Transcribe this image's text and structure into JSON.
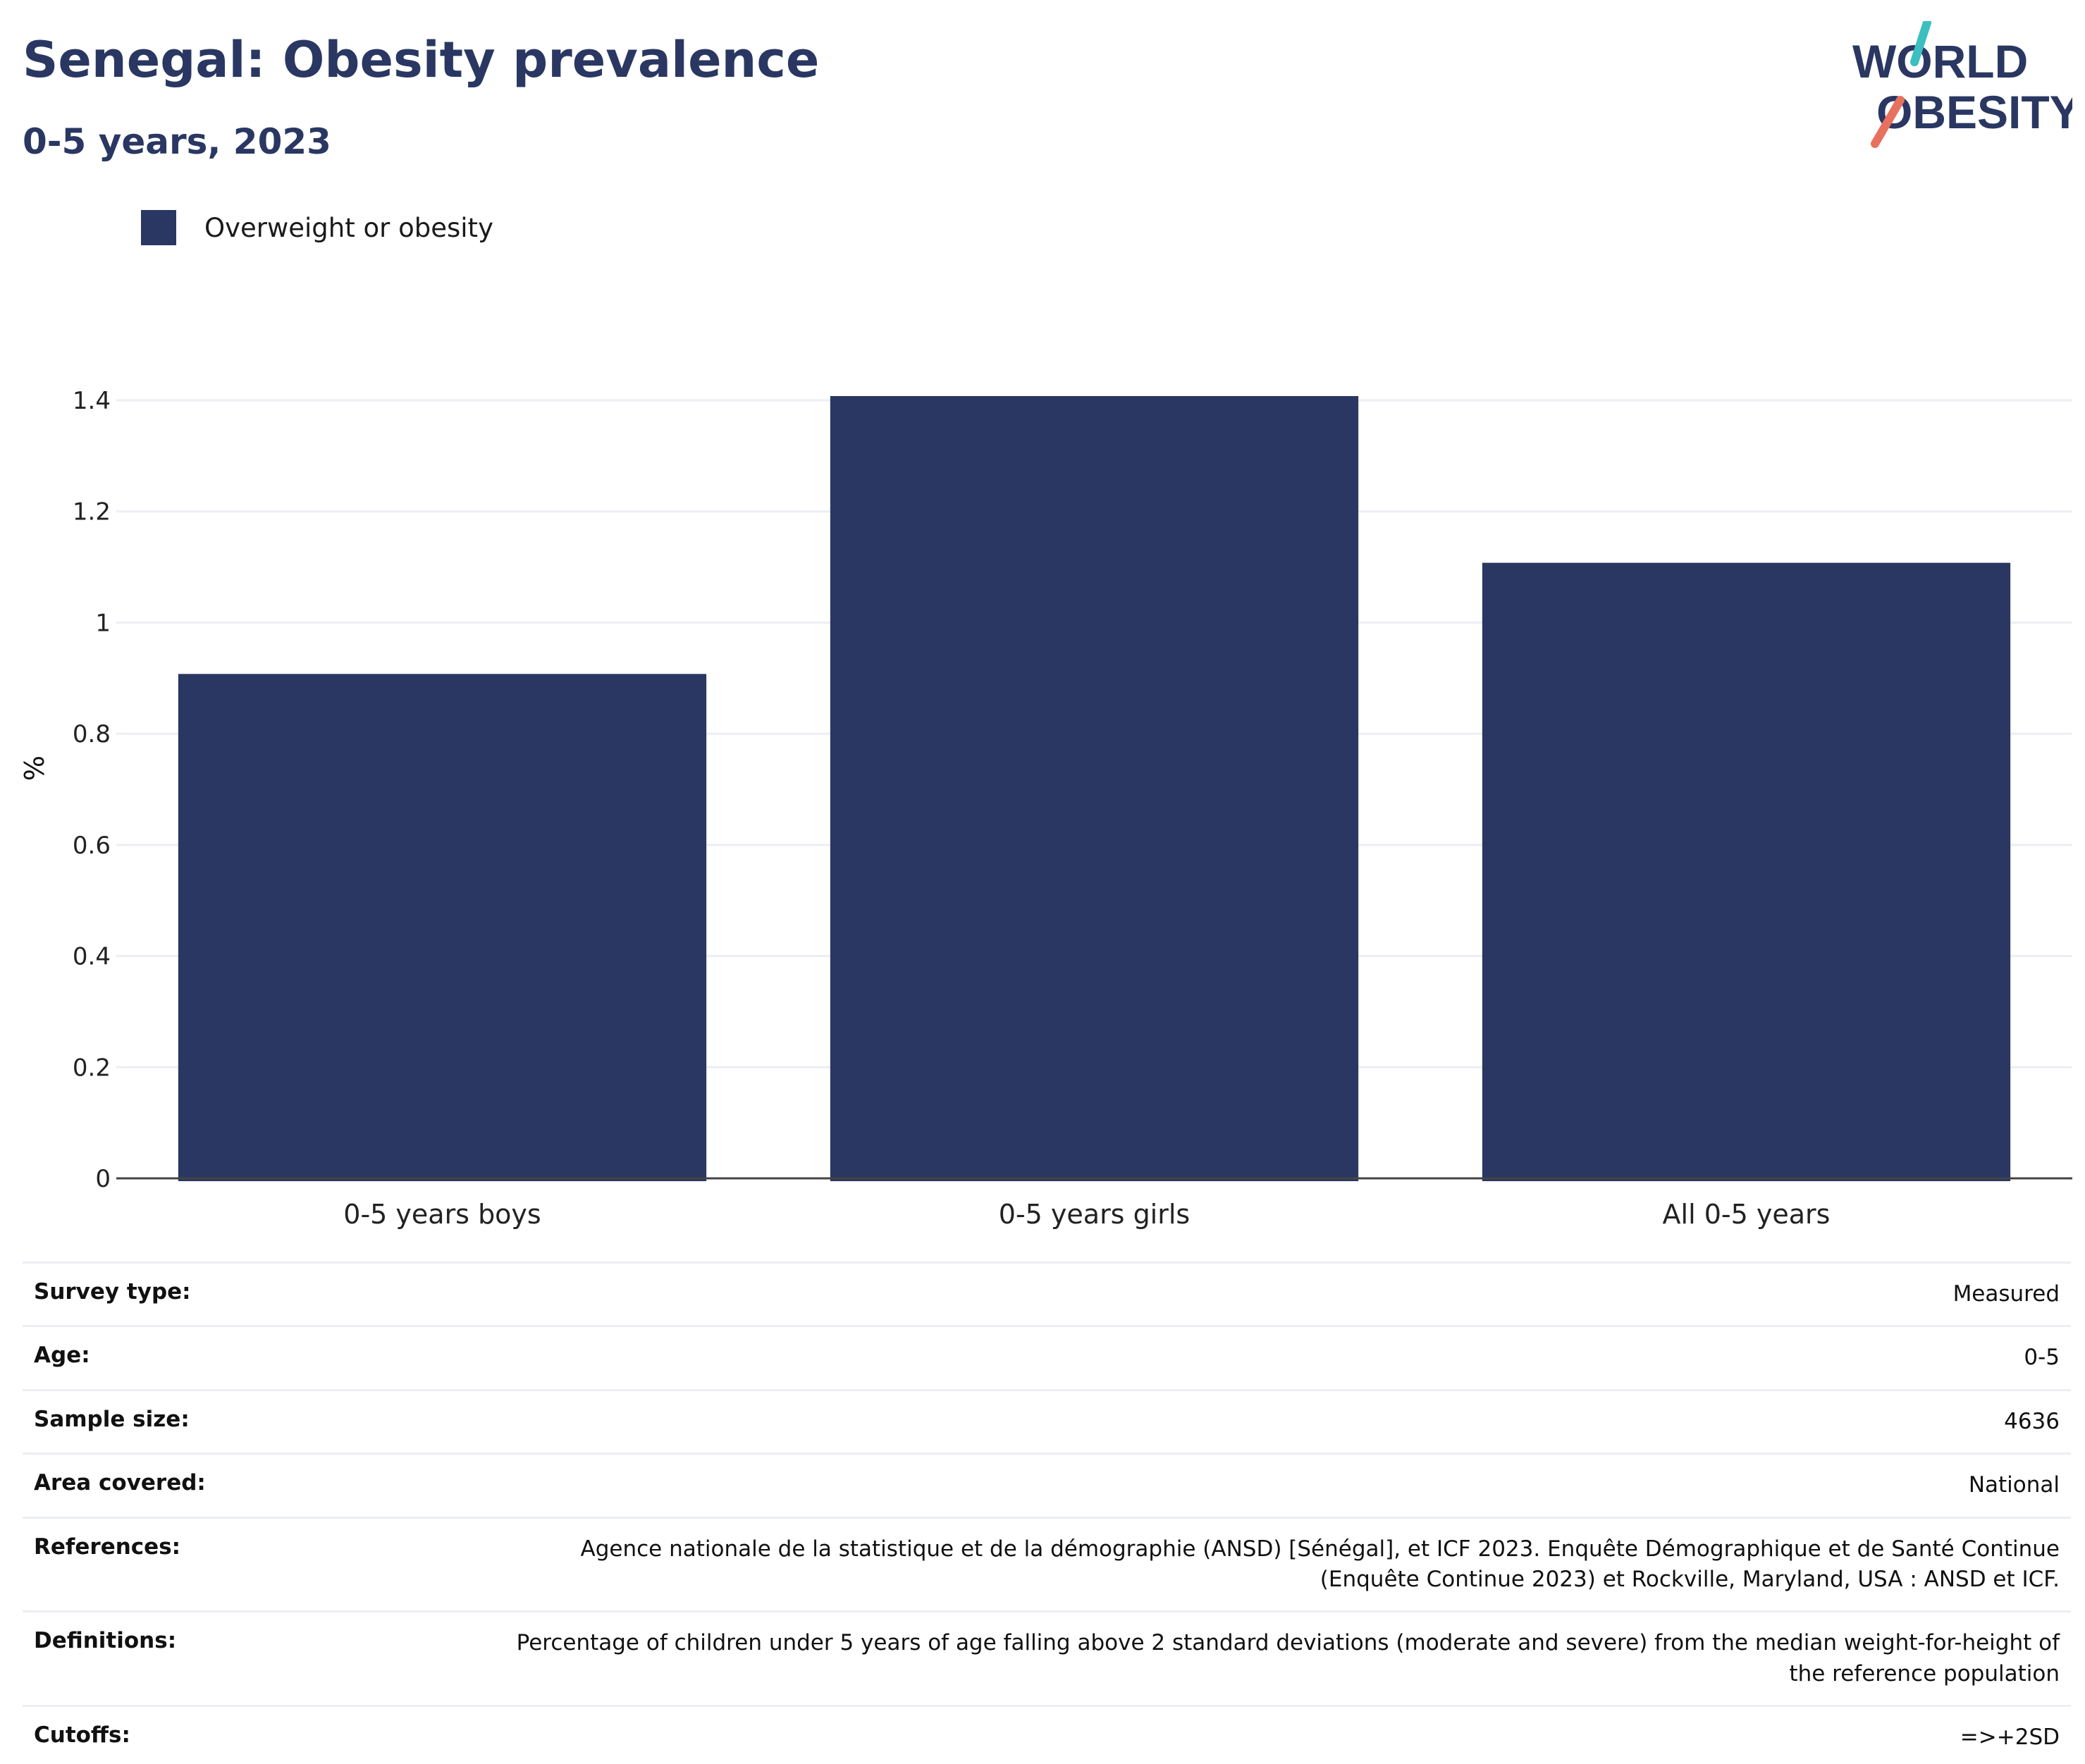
{
  "header": {
    "title": "Senegal: Obesity prevalence",
    "subtitle": "0-5 years, 2023"
  },
  "logo": {
    "line1": "WORLD",
    "line2": "OBESITY",
    "accent_teal": "#3bbfbf",
    "accent_coral": "#e8705f"
  },
  "colors": {
    "bar": "#2a3762",
    "text": "#2a3762",
    "grid": "#eceef3"
  },
  "chart_data": {
    "type": "bar",
    "categories": [
      "0-5 years boys",
      "0-5 years girls",
      "All 0-5 years"
    ],
    "series": [
      {
        "name": "Overweight or obesity",
        "values": [
          0.9,
          1.4,
          1.1
        ]
      }
    ],
    "ylabel": "%",
    "ylim": [
      0,
      1.4
    ],
    "yticks": [
      "0",
      "0.2",
      "0.4",
      "0.6",
      "0.8",
      "1",
      "1.2",
      "1.4"
    ],
    "grid": true,
    "legend": "top-left"
  },
  "info": [
    {
      "key": "Survey type:",
      "value": "Measured"
    },
    {
      "key": "Age:",
      "value": "0-5"
    },
    {
      "key": "Sample size:",
      "value": "4636"
    },
    {
      "key": "Area covered:",
      "value": "National"
    },
    {
      "key": "References:",
      "value": "Agence nationale de la statistique et de la démographie (ANSD) [Sénégal], et ICF 2023. Enquête Démographique et de Santé Continue (Enquête Continue 2023) et Rockville, Maryland, USA : ANSD et ICF."
    },
    {
      "key": "Definitions:",
      "value": "Percentage of children under 5 years of age falling above 2 standard deviations (moderate and severe) from the median weight-for-height of the reference population"
    },
    {
      "key": "Cutoffs:",
      "value": "=>+2SD"
    }
  ]
}
